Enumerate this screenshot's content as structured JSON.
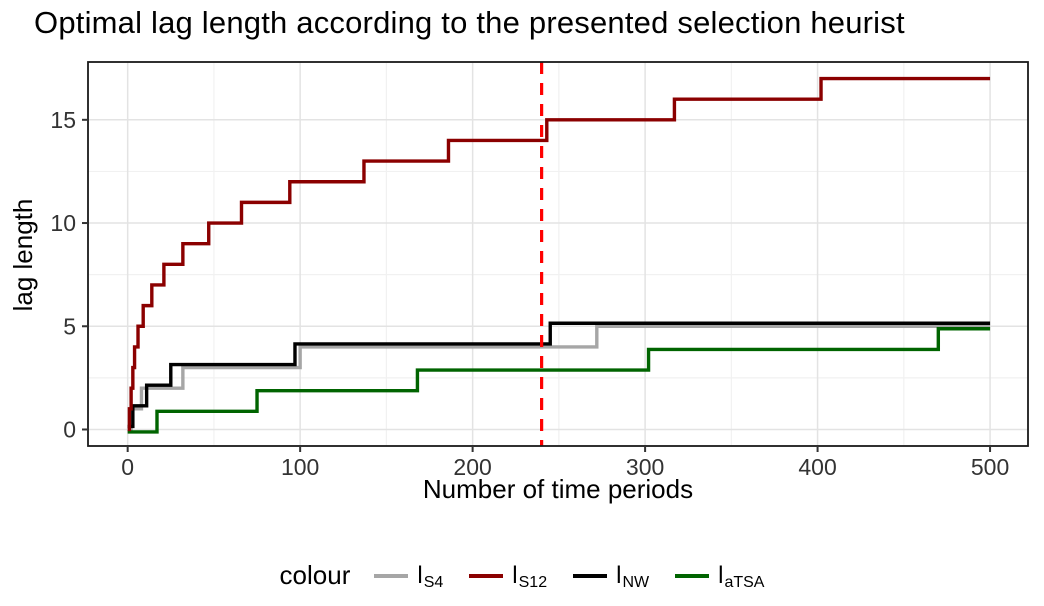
{
  "title": "Optimal lag length according to the presented selection heurist",
  "chart_data": {
    "type": "line",
    "step_interpolation": "step-after",
    "title": "Optimal lag length according to the presented selection heurist",
    "xlabel": "Number of time periods",
    "ylabel": "lag length",
    "xlim": [
      -23,
      522
    ],
    "ylim": [
      -0.8,
      17.8
    ],
    "x_ticks": [
      0,
      100,
      200,
      300,
      400,
      500
    ],
    "y_ticks": [
      0,
      5,
      10,
      15
    ],
    "grid": {
      "major_color": "#E3E3E3",
      "minor_color": "#F1F1F1",
      "on": true
    },
    "panel_border_color": "#1A1A1A",
    "legend": {
      "title": "colour",
      "position": "bottom"
    },
    "vline": {
      "x": 240,
      "color": "#FF0000",
      "style": "dashed"
    },
    "series": [
      {
        "name": "l_S4",
        "label": {
          "base": "l",
          "sub": "S4"
        },
        "color": "#A6A6A6",
        "points": [
          [
            0,
            0
          ],
          [
            2,
            1
          ],
          [
            8,
            2
          ],
          [
            32,
            3
          ],
          [
            100,
            4
          ],
          [
            272,
            5
          ],
          [
            500,
            5
          ]
        ]
      },
      {
        "name": "l_S12",
        "label": {
          "base": "l",
          "sub": "S12"
        },
        "color": "#8B0000",
        "points": [
          [
            0,
            0
          ],
          [
            1,
            1
          ],
          [
            2,
            2
          ],
          [
            3,
            3
          ],
          [
            4,
            4
          ],
          [
            6,
            5
          ],
          [
            9,
            6
          ],
          [
            14,
            7
          ],
          [
            21,
            8
          ],
          [
            32,
            9
          ],
          [
            47,
            10
          ],
          [
            66,
            11
          ],
          [
            94,
            12
          ],
          [
            137,
            13
          ],
          [
            186,
            14
          ],
          [
            243,
            15
          ],
          [
            317,
            16
          ],
          [
            402,
            17
          ],
          [
            500,
            17
          ]
        ]
      },
      {
        "name": "l_NW",
        "label": {
          "base": "l",
          "sub": "NW"
        },
        "color": "#000000",
        "points": [
          [
            0,
            0
          ],
          [
            3,
            1
          ],
          [
            11,
            2
          ],
          [
            25,
            3
          ],
          [
            97,
            4
          ],
          [
            245,
            5
          ],
          [
            500,
            5
          ]
        ]
      },
      {
        "name": "l_aTSA",
        "label": {
          "base": "l",
          "sub": "aTSA"
        },
        "color": "#006400",
        "points": [
          [
            0,
            0
          ],
          [
            17,
            1
          ],
          [
            75,
            2
          ],
          [
            168,
            3
          ],
          [
            302,
            4
          ],
          [
            470,
            5
          ],
          [
            500,
            5
          ]
        ]
      }
    ]
  }
}
